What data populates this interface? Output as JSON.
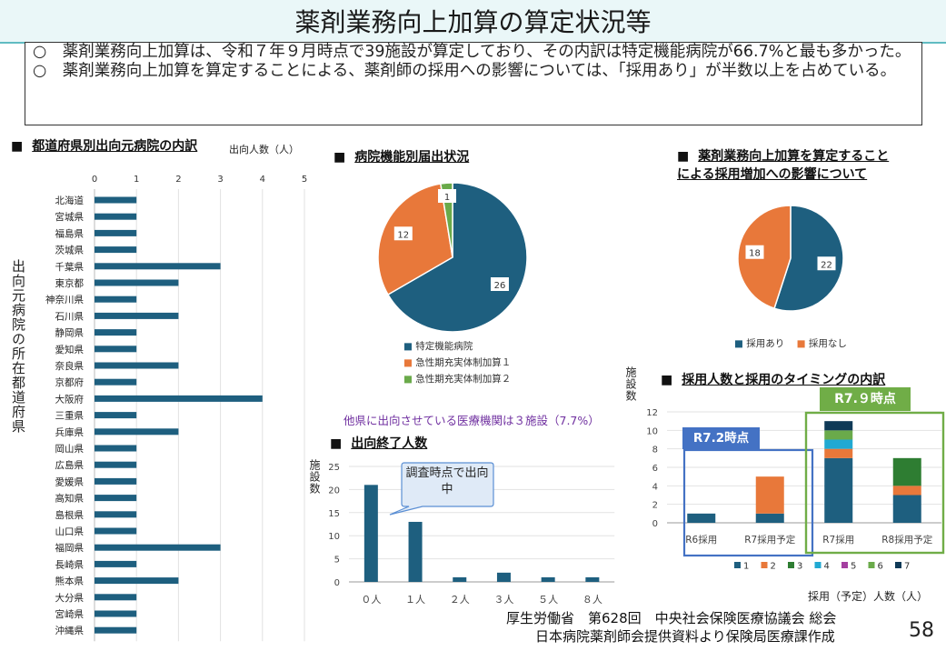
{
  "title": "薬剤業務向上加算の算定状況等",
  "summary": [
    "○　薬剤業務向上加算は、令和７年９月時点で39施設が算定しており、その内訳は特定機能病院が66.7%と最も多かった。",
    "○　薬剤業務向上加算を算定することによる、薬剤師の採用への影響については、「採用あり」が半数以上を占めている。"
  ],
  "sections": {
    "prefecture": "都道府県別出向元病院の内訳",
    "hospital_type": "病院機能別届出状況",
    "hiring_impact_1": "薬剤業務向上加算を算定すること",
    "hiring_impact_2": "による採用増加への影響について",
    "end_count": "出向終了人数",
    "hiring_timing": "採用人数と採用のタイミングの内訳"
  },
  "section_marker": "■",
  "annotations": {
    "other_prefecture": "他県に出向させている医療機関は３施設（7.7%）",
    "callout": "調査時点で出向中",
    "r7_2": "R7.2時点",
    "r7_9": "R7.９時点"
  },
  "footer": {
    "line1": "厚生労働省　第628回　中央社会保険医療協議会 総会",
    "line2": "日本病院薬剤師会提供資料より保険局医療課作成",
    "page": "58"
  },
  "colors": {
    "navy": "#1e5f7f",
    "orange": "#e8783a",
    "green": "#6aaa4a",
    "dark_green": "#2e7d32",
    "cyan": "#21a9d2",
    "magenta": "#a43fa0",
    "dark_navy": "#0f3a57",
    "box_blue": "#4472c4",
    "box_green": "#70ad47"
  },
  "chart_data": [
    {
      "type": "bar",
      "orientation": "horizontal",
      "title": "都道府県別出向元病院の内訳",
      "xlabel": "出向人数（人）",
      "ylabel": "出向元病院の所在都道府県",
      "xlim": [
        0,
        5
      ],
      "xticks": [
        "0",
        "1",
        "2",
        "3",
        "4",
        "5"
      ],
      "categories": [
        "北海道",
        "宮城県",
        "福島県",
        "茨城県",
        "千葉県",
        "東京都",
        "神奈川県",
        "石川県",
        "静岡県",
        "愛知県",
        "奈良県",
        "京都府",
        "大阪府",
        "三重県",
        "兵庫県",
        "岡山県",
        "広島県",
        "愛媛県",
        "高知県",
        "島根県",
        "山口県",
        "福岡県",
        "長崎県",
        "熊本県",
        "大分県",
        "宮崎県",
        "沖縄県"
      ],
      "values": [
        1,
        1,
        1,
        1,
        3,
        2,
        1,
        2,
        1,
        1,
        2,
        1,
        4,
        1,
        2,
        1,
        1,
        1,
        1,
        1,
        1,
        3,
        1,
        2,
        1,
        1,
        1
      ]
    },
    {
      "type": "pie",
      "title": "病院機能別届出状況",
      "labels": [
        "特定機能病院",
        "急性期充実体制加算１",
        "急性期充実体制加算２"
      ],
      "values": [
        26,
        12,
        1
      ]
    },
    {
      "type": "pie",
      "title": "薬剤業務向上加算を算定することによる採用増加への影響について",
      "labels": [
        "採用あり",
        "採用なし"
      ],
      "values": [
        22,
        18
      ]
    },
    {
      "type": "bar",
      "title": "出向終了人数",
      "ylabel": "施設数",
      "ylim": [
        0,
        25
      ],
      "yticks": [
        "0",
        "5",
        "10",
        "15",
        "20",
        "25"
      ],
      "categories": [
        "０人",
        "１人",
        "２人",
        "３人",
        "５人",
        "８人"
      ],
      "values": [
        21,
        13,
        1,
        2,
        1,
        1
      ]
    },
    {
      "type": "bar",
      "stacked": true,
      "title": "採用人数と採用のタイミングの内訳",
      "ylabel": "施設数",
      "xlabel": "採用（予定）人数（人）",
      "ylim": [
        0,
        12
      ],
      "yticks": [
        "0",
        "2",
        "4",
        "6",
        "8",
        "10",
        "12"
      ],
      "categories": [
        "R6採用",
        "R7採用予定",
        "R7採用",
        "R8採用予定"
      ],
      "series": [
        {
          "name": "1",
          "values": [
            1,
            1,
            7,
            3
          ]
        },
        {
          "name": "2",
          "values": [
            0,
            4,
            1,
            1
          ]
        },
        {
          "name": "3",
          "values": [
            0,
            0,
            0,
            3
          ]
        },
        {
          "name": "4",
          "values": [
            0,
            0,
            1,
            0
          ]
        },
        {
          "name": "5",
          "values": [
            0,
            0,
            0,
            0
          ]
        },
        {
          "name": "6",
          "values": [
            0,
            0,
            1,
            0
          ]
        },
        {
          "name": "7",
          "values": [
            0,
            0,
            1,
            0
          ]
        }
      ]
    }
  ]
}
